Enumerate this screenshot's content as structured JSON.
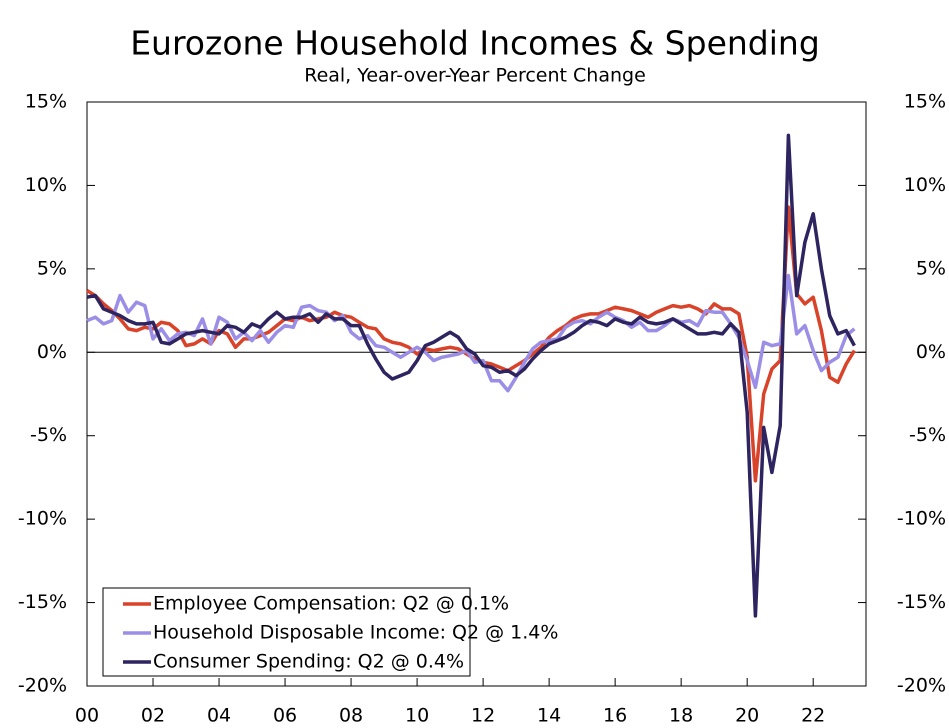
{
  "chart_data": {
    "type": "line",
    "title": "Eurozone Household Incomes & Spending",
    "subtitle": "Real, Year-over-Year Percent Change",
    "x": [
      2000,
      2000.25,
      2000.5,
      2000.75,
      2001,
      2001.25,
      2001.5,
      2001.75,
      2002,
      2002.25,
      2002.5,
      2002.75,
      2003,
      2003.25,
      2003.5,
      2003.75,
      2004,
      2004.25,
      2004.5,
      2004.75,
      2005,
      2005.25,
      2005.5,
      2005.75,
      2006,
      2006.25,
      2006.5,
      2006.75,
      2007,
      2007.25,
      2007.5,
      2007.75,
      2008,
      2008.25,
      2008.5,
      2008.75,
      2009,
      2009.25,
      2009.5,
      2009.75,
      2010,
      2010.25,
      2010.5,
      2010.75,
      2011,
      2011.25,
      2011.5,
      2011.75,
      2012,
      2012.25,
      2012.5,
      2012.75,
      2013,
      2013.25,
      2013.5,
      2013.75,
      2014,
      2014.25,
      2014.5,
      2014.75,
      2015,
      2015.25,
      2015.5,
      2015.75,
      2016,
      2016.25,
      2016.5,
      2016.75,
      2017,
      2017.25,
      2017.5,
      2017.75,
      2018,
      2018.25,
      2018.5,
      2018.75,
      2019,
      2019.25,
      2019.5,
      2019.75,
      2020,
      2020.25,
      2020.5,
      2020.75,
      2021,
      2021.25,
      2021.5,
      2021.75,
      2022,
      2022.25,
      2022.5,
      2022.75,
      2023,
      2023.25
    ],
    "series": [
      {
        "name": "Employee Compensation: Q2 @ 0.1%",
        "color": "#d9432a",
        "values": [
          3.7,
          3.4,
          2.9,
          2.5,
          2.0,
          1.4,
          1.3,
          1.5,
          1.4,
          1.8,
          1.7,
          1.3,
          0.4,
          0.5,
          0.8,
          0.5,
          1.3,
          1.1,
          0.3,
          0.8,
          0.8,
          1.0,
          1.2,
          1.6,
          2.0,
          1.9,
          2.1,
          1.9,
          2.0,
          2.1,
          2.4,
          2.2,
          2.1,
          1.8,
          1.5,
          1.4,
          0.8,
          0.6,
          0.5,
          0.3,
          -0.1,
          0.2,
          0.1,
          0.2,
          0.3,
          0.2,
          -0.1,
          -0.4,
          -0.6,
          -0.7,
          -0.9,
          -1.1,
          -0.8,
          -0.5,
          -0.1,
          0.3,
          0.9,
          1.3,
          1.6,
          2.0,
          2.2,
          2.3,
          2.3,
          2.5,
          2.7,
          2.6,
          2.5,
          2.3,
          2.1,
          2.4,
          2.6,
          2.8,
          2.7,
          2.8,
          2.6,
          2.3,
          2.9,
          2.6,
          2.6,
          2.3,
          -0.3,
          -7.7,
          -2.5,
          -1.0,
          -0.5,
          8.7,
          3.5,
          2.9,
          3.3,
          1.3,
          -1.5,
          -1.8,
          -0.7,
          0.1
        ]
      },
      {
        "name": "Household Disposable Income: Q2 @ 1.4%",
        "color": "#9b8ee6",
        "values": [
          1.9,
          2.1,
          1.7,
          1.9,
          3.4,
          2.4,
          3.0,
          2.8,
          0.8,
          1.4,
          0.7,
          1.1,
          1.2,
          1.0,
          2.0,
          0.5,
          2.1,
          1.8,
          0.8,
          1.2,
          0.7,
          1.3,
          0.6,
          1.2,
          1.6,
          1.5,
          2.7,
          2.8,
          2.5,
          2.4,
          1.9,
          2.2,
          1.2,
          0.8,
          1.0,
          0.4,
          0.3,
          0.0,
          -0.3,
          0.0,
          0.3,
          0.0,
          -0.5,
          -0.3,
          -0.2,
          -0.1,
          0.1,
          -0.6,
          -0.5,
          -1.7,
          -1.7,
          -2.3,
          -1.5,
          -0.6,
          0.2,
          0.6,
          0.7,
          0.8,
          1.5,
          1.8,
          1.9,
          1.7,
          2.1,
          2.4,
          2.1,
          1.9,
          1.5,
          1.8,
          1.3,
          1.3,
          1.6,
          2.0,
          1.8,
          1.9,
          1.6,
          2.5,
          2.4,
          2.4,
          1.7,
          0.9,
          -0.5,
          -2.1,
          0.6,
          0.4,
          0.5,
          4.6,
          1.1,
          1.6,
          0.1,
          -1.1,
          -0.6,
          -0.3,
          1.0,
          1.4
        ]
      },
      {
        "name": "Consumer Spending: Q2 @ 0.4%",
        "color": "#2d2460",
        "values": [
          3.3,
          3.4,
          2.6,
          2.4,
          2.2,
          1.9,
          1.7,
          1.7,
          1.8,
          0.6,
          0.5,
          0.8,
          1.1,
          1.2,
          1.3,
          1.2,
          1.1,
          1.6,
          1.5,
          1.2,
          1.7,
          1.5,
          2.0,
          2.4,
          2.0,
          2.1,
          2.1,
          2.3,
          1.8,
          2.3,
          2.0,
          2.0,
          1.6,
          1.6,
          0.5,
          -0.4,
          -1.2,
          -1.6,
          -1.4,
          -1.2,
          -0.5,
          0.4,
          0.6,
          0.9,
          1.2,
          0.9,
          0.2,
          -0.1,
          -0.8,
          -0.9,
          -1.2,
          -1.1,
          -1.4,
          -1.0,
          -0.4,
          0.1,
          0.5,
          0.7,
          0.9,
          1.2,
          1.6,
          1.9,
          1.8,
          1.6,
          2.0,
          1.8,
          1.7,
          2.1,
          1.8,
          1.7,
          1.8,
          2.0,
          1.7,
          1.4,
          1.1,
          1.1,
          1.2,
          1.1,
          1.7,
          1.2,
          -3.6,
          -15.8,
          -4.5,
          -7.2,
          -4.4,
          13.0,
          3.4,
          6.6,
          8.3,
          5.0,
          2.2,
          1.1,
          1.3,
          0.4
        ]
      }
    ],
    "xlim": [
      2000,
      2023.6
    ],
    "xticks": [
      {
        "value": 2000,
        "label": "00"
      },
      {
        "value": 2002,
        "label": "02"
      },
      {
        "value": 2004,
        "label": "04"
      },
      {
        "value": 2006,
        "label": "06"
      },
      {
        "value": 2008,
        "label": "08"
      },
      {
        "value": 2010,
        "label": "10"
      },
      {
        "value": 2012,
        "label": "12"
      },
      {
        "value": 2014,
        "label": "14"
      },
      {
        "value": 2016,
        "label": "16"
      },
      {
        "value": 2018,
        "label": "18"
      },
      {
        "value": 2020,
        "label": "20"
      },
      {
        "value": 2022,
        "label": "22"
      }
    ],
    "ylim": [
      -20,
      15
    ],
    "yticks": [
      {
        "value": -20,
        "label": "-20%"
      },
      {
        "value": -15,
        "label": "-15%"
      },
      {
        "value": -10,
        "label": "-10%"
      },
      {
        "value": -5,
        "label": "-5%"
      },
      {
        "value": 0,
        "label": "0%"
      },
      {
        "value": 5,
        "label": "5%"
      },
      {
        "value": 10,
        "label": "10%"
      },
      {
        "value": 15,
        "label": "15%"
      }
    ],
    "legend": "lower left"
  }
}
